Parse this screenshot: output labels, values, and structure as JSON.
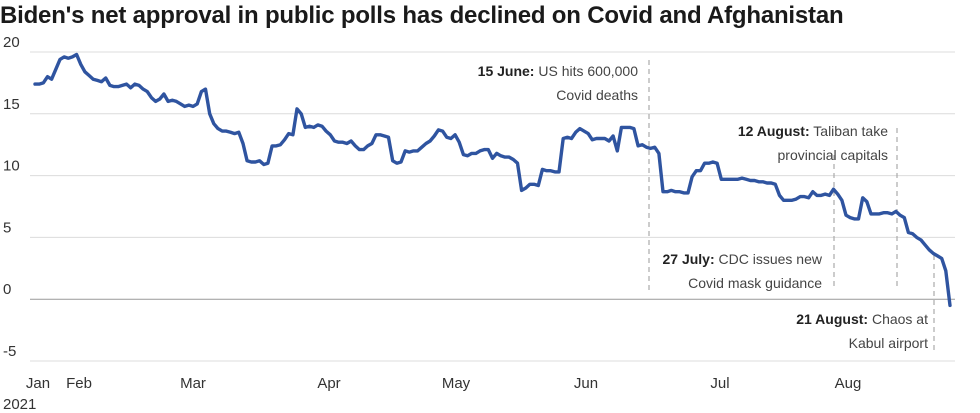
{
  "chart_data": {
    "type": "line",
    "title": "Biden's net approval in public polls has declined on Covid and Afghanistan",
    "xlabel": "",
    "ylabel": "",
    "ylim": [
      -5,
      20
    ],
    "y_ticks": [
      20,
      15,
      10,
      5,
      0,
      -5
    ],
    "x_tick_labels": [
      "Jan",
      "Feb",
      "Mar",
      "Apr",
      "May",
      "Jun",
      "Jul",
      "Aug"
    ],
    "x_year_label": "2021",
    "grid": true,
    "colors": {
      "line": "#2f54a0",
      "grid": "#dcdcdc",
      "zero": "#999999",
      "annotation_line": "#aaaaaa"
    },
    "series": [
      {
        "values": [
          17.4,
          17.4,
          17.5,
          18.0,
          17.8,
          18.6,
          19.4,
          19.6,
          19.5,
          19.6,
          19.8,
          19.0,
          18.4,
          18.1,
          17.8,
          17.7,
          17.6,
          17.9,
          17.3,
          17.2,
          17.2,
          17.3,
          17.4,
          17.1,
          17.4,
          17.3,
          17.0,
          16.8,
          16.3,
          16.0,
          16.2,
          16.6,
          16.0,
          16.1,
          16.0,
          15.8,
          15.6,
          15.7,
          15.6,
          15.8,
          16.8,
          17.0,
          15.0,
          14.2,
          13.8,
          13.6,
          13.6,
          13.5,
          13.4,
          13.5,
          12.6,
          11.2,
          11.1,
          11.1,
          11.2,
          10.9,
          11.0,
          12.4,
          12.4,
          12.5,
          12.9,
          13.4,
          13.3,
          15.4,
          15.0,
          13.9,
          14.0,
          13.9,
          14.1,
          14.0,
          13.6,
          13.3,
          12.8,
          12.7,
          12.7,
          12.6,
          12.8,
          12.4,
          12.1,
          12.1,
          12.4,
          12.6,
          13.3,
          13.3,
          13.2,
          13.1,
          11.2,
          11.0,
          11.1,
          12.0,
          11.9,
          12.0,
          12.0,
          12.3,
          12.6,
          12.8,
          13.2,
          13.7,
          13.6,
          13.1,
          13.0,
          13.3,
          12.7,
          11.7,
          11.6,
          11.8,
          11.8,
          12.0,
          12.1,
          12.1,
          11.4,
          11.8,
          11.6,
          11.5,
          11.5,
          11.3,
          11.0,
          8.8,
          9.0,
          9.3,
          9.3,
          9.2,
          10.5,
          10.4,
          10.4,
          10.3,
          10.3,
          13.0,
          13.1,
          13.0,
          13.5,
          13.8,
          13.6,
          13.4,
          12.9,
          13.0,
          13.0,
          13.0,
          12.8,
          13.2,
          12.0,
          13.9,
          13.9,
          13.9,
          13.8,
          12.4,
          12.5,
          12.3,
          12.2,
          12.3,
          11.8,
          8.7,
          8.7,
          8.8,
          8.7,
          8.7,
          8.6,
          8.6,
          9.9,
          10.4,
          10.4,
          11.0,
          11.0,
          11.1,
          11.0,
          9.7,
          9.7,
          9.7,
          9.7,
          9.7,
          9.8,
          9.7,
          9.6,
          9.6,
          9.5,
          9.5,
          9.4,
          9.4,
          9.3,
          8.4,
          8.0,
          8.0,
          8.0,
          8.1,
          8.3,
          8.3,
          8.2,
          8.7,
          8.4,
          8.4,
          8.5,
          8.4,
          8.9,
          8.5,
          8.0,
          6.8,
          6.6,
          6.5,
          6.5,
          8.2,
          7.9,
          6.9,
          6.9,
          6.9,
          7.0,
          7.0,
          6.9,
          7.1,
          6.8,
          6.6,
          5.4,
          5.3,
          5.0,
          4.8,
          4.4,
          4.0,
          3.7,
          3.5,
          3.3,
          2.3,
          -0.5
        ]
      }
    ],
    "annotations": [
      {
        "bold": "15 June:",
        "text": " US hits 600,000",
        "line2": "Covid deaths"
      },
      {
        "bold": "12 August:",
        "text": " Taliban take",
        "line2": "provincial capitals"
      },
      {
        "bold": "27 July:",
        "text": " CDC issues new",
        "line2": "Covid mask guidance"
      },
      {
        "bold": "21 August:",
        "text": " Chaos at",
        "line2": "Kabul airport"
      }
    ]
  }
}
